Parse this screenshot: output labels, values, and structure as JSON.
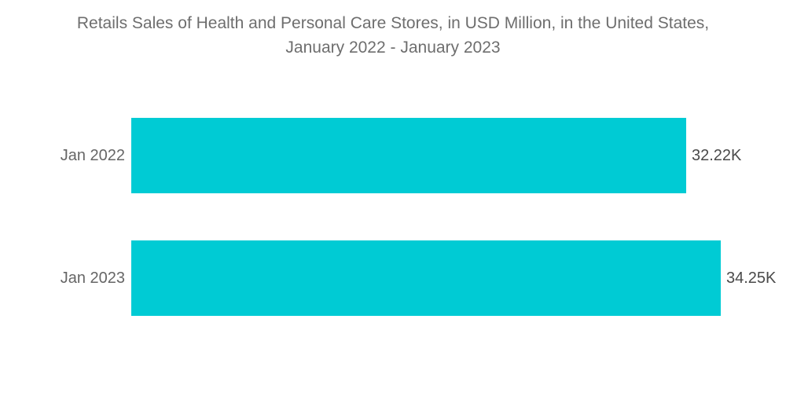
{
  "chart_data": {
    "type": "bar",
    "orientation": "horizontal",
    "title": "Retails Sales of Health and Personal Care Stores, in USD Million, in the United States, January 2022 - January 2023",
    "title_lines": [
      "Retails Sales of Health and Personal Care Stores, in USD Million, in the United States,",
      "January 2022 - January 2023"
    ],
    "categories": [
      "Jan 2022",
      "Jan 2023"
    ],
    "values": [
      32220,
      34250
    ],
    "value_labels": [
      "32.22K",
      "34.25K"
    ],
    "unit": "USD Million",
    "xlim": [
      0,
      34250
    ],
    "grid": false,
    "legend": "none",
    "bar_color": "#00cbd4"
  },
  "colors": {
    "background": "#ffffff",
    "bar": "#00cbd4",
    "title_text": "#6e6e6e",
    "category_text": "#666666",
    "value_text": "#4a4a4a"
  }
}
